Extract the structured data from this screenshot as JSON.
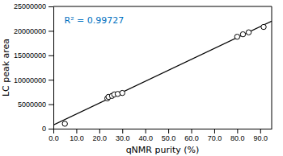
{
  "chart_data": {
    "type": "scatter",
    "xlabel": "qNMR purity (%)",
    "ylabel": "LC peak area",
    "annotations": [
      {
        "text": "R² = 0.99727",
        "color": "#0070C0"
      }
    ],
    "series": [
      {
        "type": "scatter",
        "marker": "circle",
        "color": "black",
        "x": [
          5.0,
          23.5,
          24.0,
          25.5,
          26.5,
          28.0,
          30.0,
          80.0,
          82.5,
          85.0,
          91.5
        ],
        "values": [
          1000000,
          6200000,
          6500000,
          6700000,
          7000000,
          7100000,
          7300000,
          18800000,
          19300000,
          19700000,
          20800000
        ]
      },
      {
        "type": "line",
        "color": "black",
        "x": [
          0,
          95
        ],
        "values": [
          748093,
          21996833
        ]
      }
    ],
    "xlim": [
      0,
      95
    ],
    "ylim": [
      0,
      25000000
    ],
    "xticks": [
      {
        "value": 0,
        "label": "0.0"
      },
      {
        "value": 10,
        "label": "10.0"
      },
      {
        "value": 20,
        "label": "20.0"
      },
      {
        "value": 30,
        "label": "30.0"
      },
      {
        "value": 40,
        "label": "40.0"
      },
      {
        "value": 50,
        "label": "50.0"
      },
      {
        "value": 60,
        "label": "60.0"
      },
      {
        "value": 70,
        "label": "70.0"
      },
      {
        "value": 80,
        "label": "80.0"
      },
      {
        "value": 90,
        "label": "90.0"
      }
    ],
    "yticks": [
      0,
      5000000,
      10000000,
      15000000,
      20000000,
      25000000
    ]
  }
}
